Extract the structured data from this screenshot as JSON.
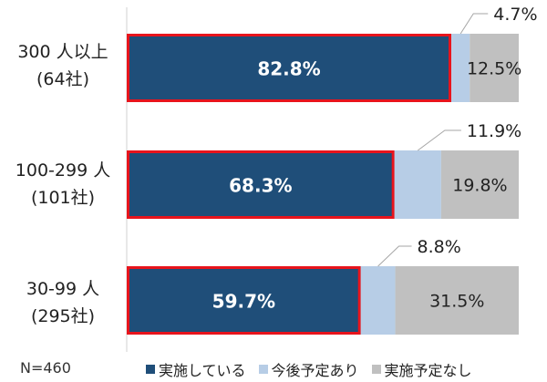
{
  "chart_data": {
    "type": "bar",
    "orientation": "horizontal",
    "stacked": true,
    "percent": true,
    "categories": [
      {
        "line1": "300 人以上",
        "line2": "(64社)"
      },
      {
        "line1": "100-299 人",
        "line2": "(101社)"
      },
      {
        "line1": "30-99 人",
        "line2": "(295社)"
      }
    ],
    "series": [
      {
        "name": "実施している",
        "color": "#1f4e79",
        "values": [
          82.8,
          68.3,
          59.7
        ],
        "labels": [
          "82.8%",
          "68.3%",
          "59.7%"
        ],
        "highlight": "#e8141c"
      },
      {
        "name": "今後予定あり",
        "color": "#b7cde6",
        "values": [
          4.7,
          11.9,
          8.8
        ],
        "labels": [
          "4.7%",
          "11.9%",
          "8.8%"
        ]
      },
      {
        "name": "実施予定なし",
        "color": "#c0c0c0",
        "values": [
          12.5,
          19.8,
          31.5
        ],
        "labels": [
          "12.5%",
          "19.8%",
          "31.5%"
        ]
      }
    ],
    "xlim": [
      0,
      100
    ],
    "grid": false,
    "legend_position": "bottom"
  },
  "footer": {
    "n_label": "N=460"
  }
}
